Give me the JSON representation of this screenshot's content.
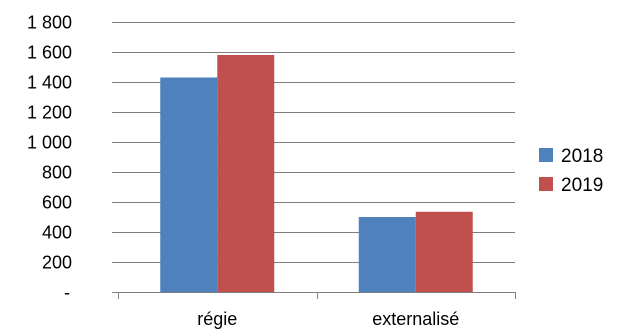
{
  "chart_data": {
    "type": "bar",
    "categories": [
      "régie",
      "externalisé"
    ],
    "series": [
      {
        "name": "2018",
        "values": [
          1430,
          500
        ],
        "color": "#4F81BD"
      },
      {
        "name": "2019",
        "values": [
          1580,
          535
        ],
        "color": "#C0504D"
      }
    ],
    "ylim": [
      0,
      1800
    ],
    "y_ticks": [
      {
        "value": 0,
        "label": "-"
      },
      {
        "value": 200,
        "label": "200"
      },
      {
        "value": 400,
        "label": "400"
      },
      {
        "value": 600,
        "label": "600"
      },
      {
        "value": 800,
        "label": "800"
      },
      {
        "value": 1000,
        "label": "1 000"
      },
      {
        "value": 1200,
        "label": "1 200"
      },
      {
        "value": 1400,
        "label": "1 400"
      },
      {
        "value": 1600,
        "label": "1 600"
      },
      {
        "value": 1800,
        "label": "1 800"
      }
    ],
    "title": "",
    "xlabel": "",
    "ylabel": "",
    "grid": true,
    "legend_position": "right",
    "gridline_color": "#7F7F7F"
  }
}
